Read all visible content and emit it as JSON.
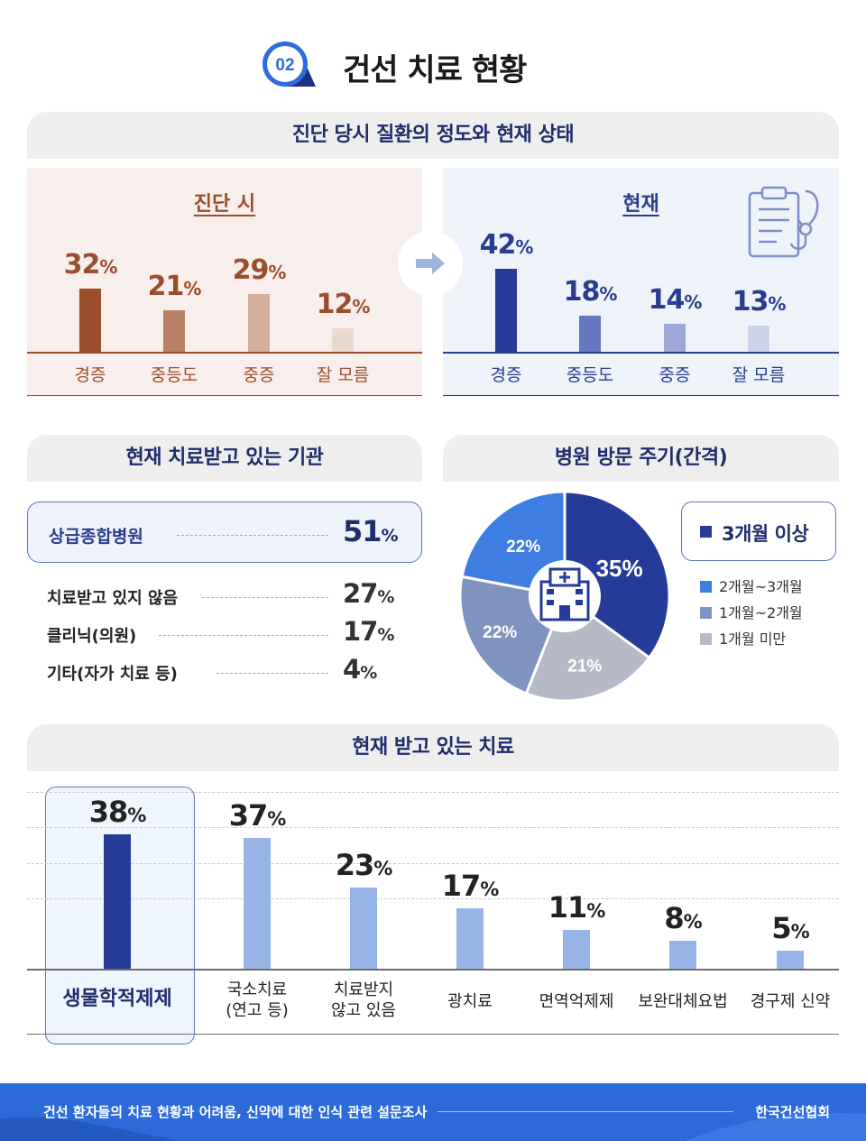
{
  "header": {
    "badge": "02",
    "title": "건선 치료 현황"
  },
  "section1": {
    "title": "진단 당시 질환의 정도와 현재 상태",
    "diagnosis": {
      "title": "진단 시"
    },
    "current": {
      "title": "현재"
    }
  },
  "section2": {
    "title": "현재 치료받고 있는 기관"
  },
  "section3": {
    "title": "병원 방문 주기(간격)"
  },
  "section4": {
    "title": "현재 받고 있는 치료"
  },
  "footer": {
    "survey": "건선 환자들의 치료 현황과 어려움, 신약에 대한 인식 관련 설문조사",
    "org": "한국건선협회"
  },
  "colors": {
    "diag_bars": [
      "#9b4e2c",
      "#b98165",
      "#d4b09c",
      "#ead9cd"
    ],
    "curr_bars": [
      "#263a98",
      "#6477bf",
      "#9ca8d6",
      "#ccd4ec"
    ],
    "pie": [
      "#263a98",
      "#b6bac8",
      "#7f93c0",
      "#3e7de2"
    ],
    "treat_highlight": "#263a98",
    "treat_bar": "#97b4e6",
    "diag_text": "#9b4e2c",
    "curr_text": "#2a3c8f"
  },
  "chart_data": [
    {
      "type": "bar",
      "title": "진단 시",
      "categories": [
        "경증",
        "중등도",
        "중증",
        "잘 모름"
      ],
      "values": [
        32,
        21,
        29,
        12
      ],
      "unit": "%"
    },
    {
      "type": "bar",
      "title": "현재",
      "categories": [
        "경증",
        "중등도",
        "중증",
        "잘 모름"
      ],
      "values": [
        42,
        18,
        14,
        13
      ],
      "unit": "%"
    },
    {
      "type": "table",
      "title": "현재 치료받고 있는 기관",
      "categories": [
        "상급종합병원",
        "치료받고 있지 않음",
        "클리닉(의원)",
        "기타(자가 치료 등)"
      ],
      "values": [
        51,
        27,
        17,
        4
      ],
      "unit": "%"
    },
    {
      "type": "pie",
      "title": "병원 방문 주기(간격)",
      "categories": [
        "3개월 이상",
        "1개월 미만",
        "1개월~2개월",
        "2개월~3개월"
      ],
      "values": [
        35,
        21,
        22,
        22
      ],
      "unit": "%",
      "legend": "right"
    },
    {
      "type": "bar",
      "title": "현재 받고 있는 치료",
      "categories": [
        "생물학적제제",
        "국소치료\n(연고 등)",
        "치료받지\n않고 있음",
        "광치료",
        "면역억제제",
        "보완대체요법",
        "경구제 신약"
      ],
      "values": [
        38,
        37,
        23,
        17,
        11,
        8,
        5
      ],
      "unit": "%"
    }
  ]
}
